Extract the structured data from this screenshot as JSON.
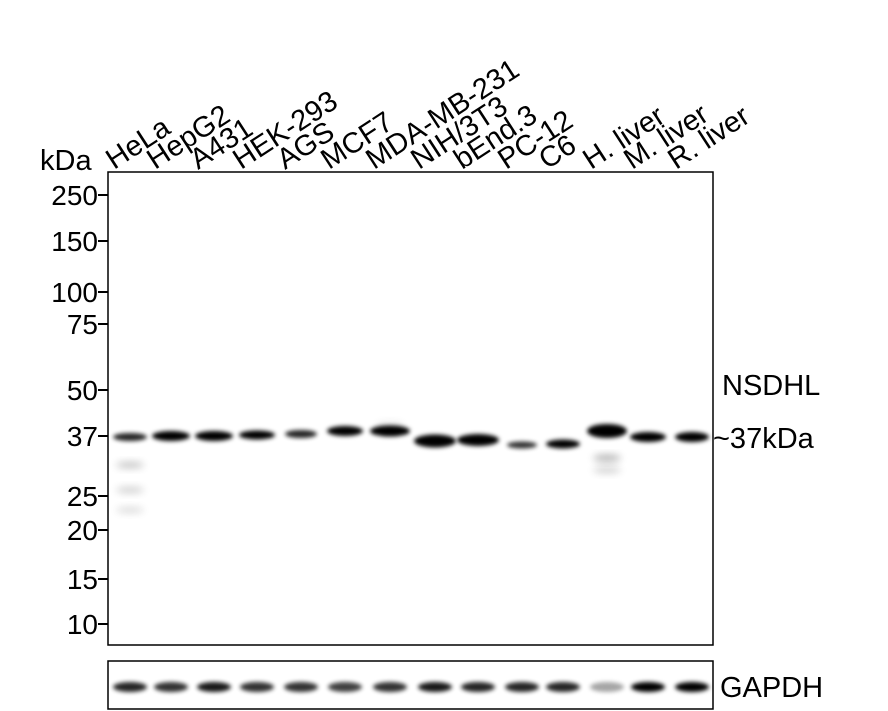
{
  "unit_label": "kDa",
  "lanes": [
    "HeLa",
    "HepG2",
    "A431",
    "HEK-293",
    "AGS",
    "MCF7",
    "MDA-MB-231",
    "NIH/3T3",
    "bEnd.3",
    "PC-12",
    "C6",
    "H. liver",
    "M. liver",
    "R. liver"
  ],
  "markers": [
    "250",
    "150",
    "100",
    "75",
    "50",
    "37",
    "25",
    "20",
    "15",
    "10"
  ],
  "target": {
    "name": "NSDHL",
    "size": "~37kDa"
  },
  "loading_control": "GAPDH"
}
